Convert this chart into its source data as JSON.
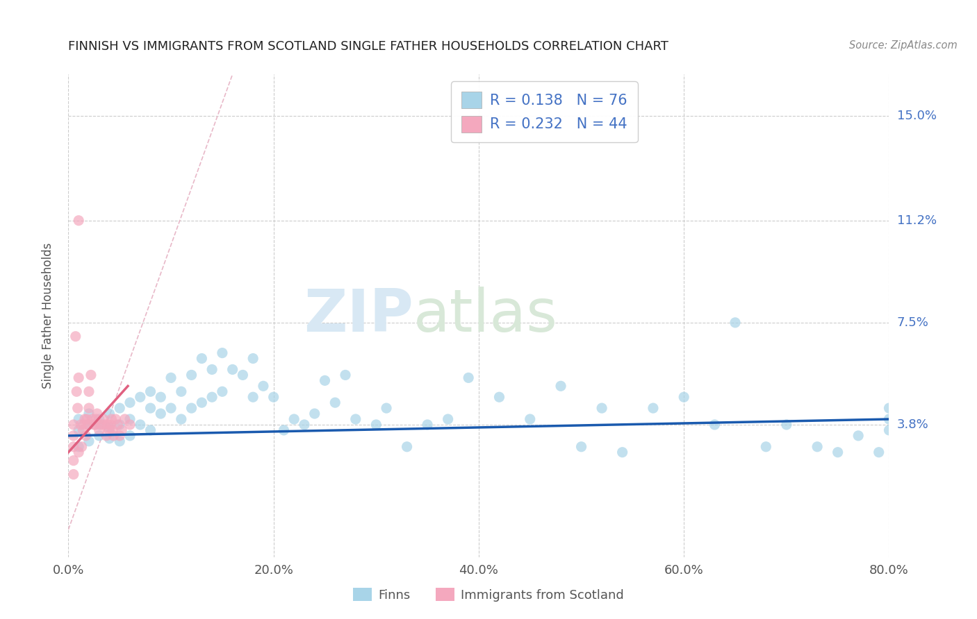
{
  "title": "FINNISH VS IMMIGRANTS FROM SCOTLAND SINGLE FATHER HOUSEHOLDS CORRELATION CHART",
  "source": "Source: ZipAtlas.com",
  "ylabel": "Single Father Households",
  "xlim": [
    0.0,
    0.8
  ],
  "ylim": [
    -0.01,
    0.165
  ],
  "xtick_labels": [
    "0.0%",
    "20.0%",
    "40.0%",
    "60.0%",
    "80.0%"
  ],
  "xtick_values": [
    0.0,
    0.2,
    0.4,
    0.6,
    0.8
  ],
  "ytick_labels": [
    "3.8%",
    "7.5%",
    "11.2%",
    "15.0%"
  ],
  "ytick_values": [
    0.038,
    0.075,
    0.112,
    0.15
  ],
  "legend1_label": "Finns",
  "legend2_label": "Immigrants from Scotland",
  "finns_R": "0.138",
  "finns_N": "76",
  "scotland_R": "0.232",
  "scotland_N": "44",
  "finns_color": "#a8d4e8",
  "scotland_color": "#f4a8be",
  "finns_trend_color": "#1a5aae",
  "scotland_trend_color": "#e06080",
  "diagonal_color": "#e8b8c8",
  "watermark_color": "#d8e8f4",
  "background_color": "#ffffff",
  "finns_x": [
    0.01,
    0.01,
    0.01,
    0.02,
    0.02,
    0.02,
    0.03,
    0.03,
    0.03,
    0.04,
    0.04,
    0.04,
    0.05,
    0.05,
    0.05,
    0.06,
    0.06,
    0.06,
    0.07,
    0.07,
    0.08,
    0.08,
    0.08,
    0.09,
    0.09,
    0.1,
    0.1,
    0.11,
    0.11,
    0.12,
    0.12,
    0.13,
    0.13,
    0.14,
    0.14,
    0.15,
    0.15,
    0.16,
    0.17,
    0.18,
    0.18,
    0.19,
    0.2,
    0.21,
    0.22,
    0.23,
    0.24,
    0.25,
    0.26,
    0.27,
    0.28,
    0.3,
    0.31,
    0.33,
    0.35,
    0.37,
    0.39,
    0.42,
    0.45,
    0.48,
    0.5,
    0.52,
    0.54,
    0.57,
    0.6,
    0.63,
    0.65,
    0.68,
    0.7,
    0.73,
    0.75,
    0.77,
    0.79,
    0.8,
    0.8,
    0.8
  ],
  "finns_y": [
    0.04,
    0.036,
    0.03,
    0.038,
    0.042,
    0.032,
    0.04,
    0.038,
    0.034,
    0.042,
    0.037,
    0.033,
    0.044,
    0.038,
    0.032,
    0.046,
    0.04,
    0.034,
    0.048,
    0.038,
    0.05,
    0.044,
    0.036,
    0.048,
    0.042,
    0.055,
    0.044,
    0.05,
    0.04,
    0.056,
    0.044,
    0.062,
    0.046,
    0.058,
    0.048,
    0.064,
    0.05,
    0.058,
    0.056,
    0.062,
    0.048,
    0.052,
    0.048,
    0.036,
    0.04,
    0.038,
    0.042,
    0.054,
    0.046,
    0.056,
    0.04,
    0.038,
    0.044,
    0.03,
    0.038,
    0.04,
    0.055,
    0.048,
    0.04,
    0.052,
    0.03,
    0.044,
    0.028,
    0.044,
    0.048,
    0.038,
    0.075,
    0.03,
    0.038,
    0.03,
    0.028,
    0.034,
    0.028,
    0.04,
    0.036,
    0.044
  ],
  "scotland_x": [
    0.005,
    0.005,
    0.005,
    0.005,
    0.005,
    0.007,
    0.008,
    0.009,
    0.01,
    0.01,
    0.01,
    0.012,
    0.013,
    0.014,
    0.015,
    0.016,
    0.017,
    0.018,
    0.019,
    0.02,
    0.02,
    0.022,
    0.023,
    0.025,
    0.026,
    0.027,
    0.028,
    0.03,
    0.032,
    0.034,
    0.035,
    0.037,
    0.038,
    0.04,
    0.041,
    0.042,
    0.043,
    0.044,
    0.046,
    0.048,
    0.05,
    0.052,
    0.055,
    0.06
  ],
  "scotland_y": [
    0.038,
    0.034,
    0.03,
    0.025,
    0.02,
    0.07,
    0.05,
    0.044,
    0.112,
    0.055,
    0.028,
    0.038,
    0.03,
    0.036,
    0.038,
    0.04,
    0.034,
    0.04,
    0.038,
    0.044,
    0.05,
    0.056,
    0.04,
    0.038,
    0.038,
    0.04,
    0.042,
    0.036,
    0.038,
    0.04,
    0.038,
    0.034,
    0.038,
    0.036,
    0.038,
    0.04,
    0.036,
    0.034,
    0.04,
    0.038,
    0.034,
    0.036,
    0.04,
    0.038
  ]
}
